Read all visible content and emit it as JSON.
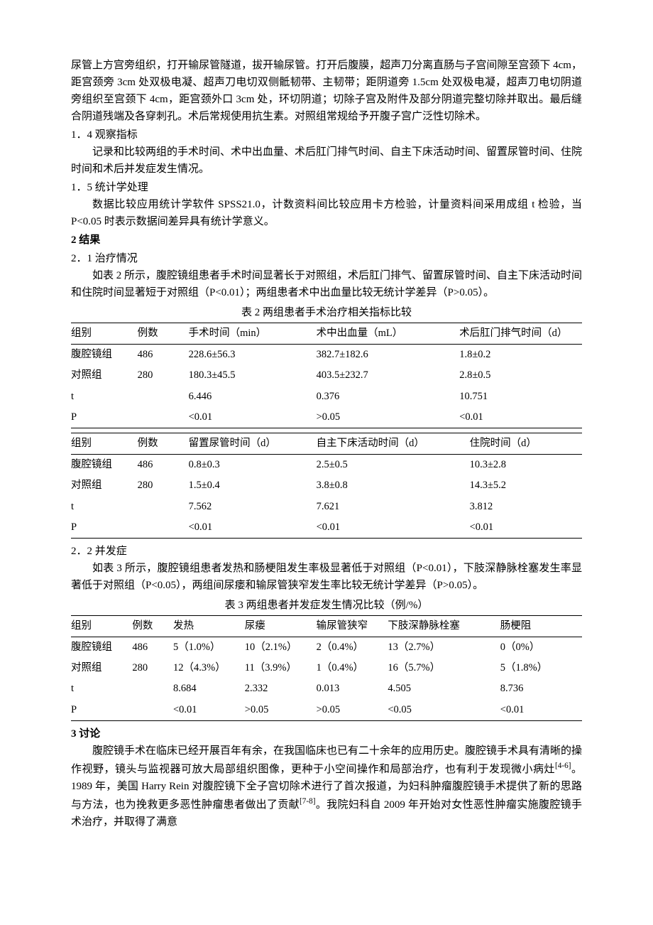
{
  "para_top": "尿管上方宫旁组织，打开输尿管隧道，拔开输尿管。打开后腹膜，超声刀分离直肠与子宫间隙至宫颈下 4cm，距宫颈旁 3cm 处双极电凝、超声刀电切双侧骶韧带、主韧带；距阴道旁 1.5cm 处双极电凝，超声刀电切阴道旁组织至宫颈下 4cm，距宫颈外口 3cm 处，环切阴道；切除子宫及附件及部分阴道完整切除并取出。最后缝合阴道残端及各穿刺孔。术后常规使用抗生素。对照组常规给予开腹子宫广泛性切除术。",
  "s1_4_title": "1．4 观察指标",
  "s1_4_body": "记录和比较两组的手术时间、术中出血量、术后肛门排气时间、自主下床活动时间、留置尿管时间、住院时间和术后并发症发生情况。",
  "s1_5_title": "1．5 统计学处理",
  "s1_5_body": "数据比较应用统计学软件 SPSS21.0，计数资料间比较应用卡方检验，计量资料间采用成组 t 检验，当 P<0.05 时表示数据间差异具有统计学意义。",
  "s2_title": "2  结果",
  "s2_1_title": "2．1 治疗情况",
  "s2_1_body": "如表 2 所示，腹腔镜组患者手术时间显著长于对照组，术后肛门排气、留置尿管时间、自主下床活动时间和住院时间显著短于对照组（P<0.01）；两组患者术中出血量比较无统计学差异（P>0.05）。",
  "table2_caption": "表 2  两组患者手术治疗相关指标比较",
  "table2a": {
    "headers": [
      "组别",
      "例数",
      "手术时间（min）",
      "术中出血量（mL）",
      "术后肛门排气时间（d）"
    ],
    "rows": [
      [
        "腹腔镜组",
        "486",
        "228.6±56.3",
        "382.7±182.6",
        "1.8±0.2"
      ],
      [
        "对照组",
        "280",
        "180.3±45.5",
        "403.5±232.7",
        "2.8±0.5"
      ],
      [
        "t",
        "",
        "6.446",
        "0.376",
        "10.751"
      ],
      [
        "P",
        "",
        "<0.01",
        ">0.05",
        "<0.01"
      ]
    ],
    "widths": [
      "13%",
      "10%",
      "25%",
      "28%",
      "24%"
    ]
  },
  "table2b": {
    "headers": [
      "组别",
      "例数",
      "留置尿管时间（d）",
      "自主下床活动时间（d）",
      "住院时间（d）"
    ],
    "rows": [
      [
        "腹腔镜组",
        "486",
        "0.8±0.3",
        "2.5±0.5",
        "10.3±2.8"
      ],
      [
        "对照组",
        "280",
        "1.5±0.4",
        "3.8±0.8",
        "14.3±5.2"
      ],
      [
        "t",
        "",
        "7.562",
        "7.621",
        "3.812"
      ],
      [
        "P",
        "",
        "<0.01",
        "<0.01",
        "<0.01"
      ]
    ],
    "widths": [
      "13%",
      "10%",
      "25%",
      "30%",
      "22%"
    ]
  },
  "s2_2_title": "2．2 并发症",
  "s2_2_body": "如表 3 所示，腹腔镜组患者发热和肠梗阻发生率极显著低于对照组（P<0.01），下肢深静脉栓塞发生率显著低于对照组（P<0.05），两组间尿瘘和输尿管狭窄发生率比较无统计学差异（P>0.05）。",
  "table3_caption": "表 3  两组患者并发症发生情况比较（例/%）",
  "table3": {
    "headers": [
      "组别",
      "例数",
      "发热",
      "尿瘘",
      "输尿管狭窄",
      "下肢深静脉栓塞",
      "肠梗阻"
    ],
    "rows": [
      [
        "腹腔镜组",
        "486",
        "5（1.0%）",
        "10（2.1%）",
        "2（0.4%）",
        "13（2.7%）",
        "0（0%）"
      ],
      [
        "对照组",
        "280",
        "12（4.3%）",
        "11（3.9%）",
        "1（0.4%）",
        "16（5.7%）",
        "5（1.8%）"
      ],
      [
        "t",
        "",
        "8.684",
        "2.332",
        "0.013",
        "4.505",
        "8.736"
      ],
      [
        "P",
        "",
        "<0.01",
        ">0.05",
        ">0.05",
        "<0.05",
        "<0.01"
      ]
    ],
    "widths": [
      "12%",
      "8%",
      "14%",
      "14%",
      "14%",
      "22%",
      "16%"
    ]
  },
  "s3_title": "3  讨论",
  "s3_body_before": "腹腔镜手术在临床已经开展百年有余，在我国临床也已有二十余年的应用历史。腹腔镜手术具有清晰的操作视野，镜头与监视器可放大局部组织图像，更种于小空间操作和局部治疗，也有利于发现微小病灶",
  "s3_cite1": "[4-6]",
  "s3_body_mid": "。1989 年，美国 Harry Rein 对腹腔镜下全子宫切除术进行了首次报道，为妇科肿瘤腹腔镜手术提供了新的思路与方法，也为挽救更多恶性肿瘤患者做出了贡献",
  "s3_cite2": "[7-8]",
  "s3_body_after": "。我院妇科自 2009 年开始对女性恶性肿瘤实施腹腔镜手术治疗，并取得了满意"
}
